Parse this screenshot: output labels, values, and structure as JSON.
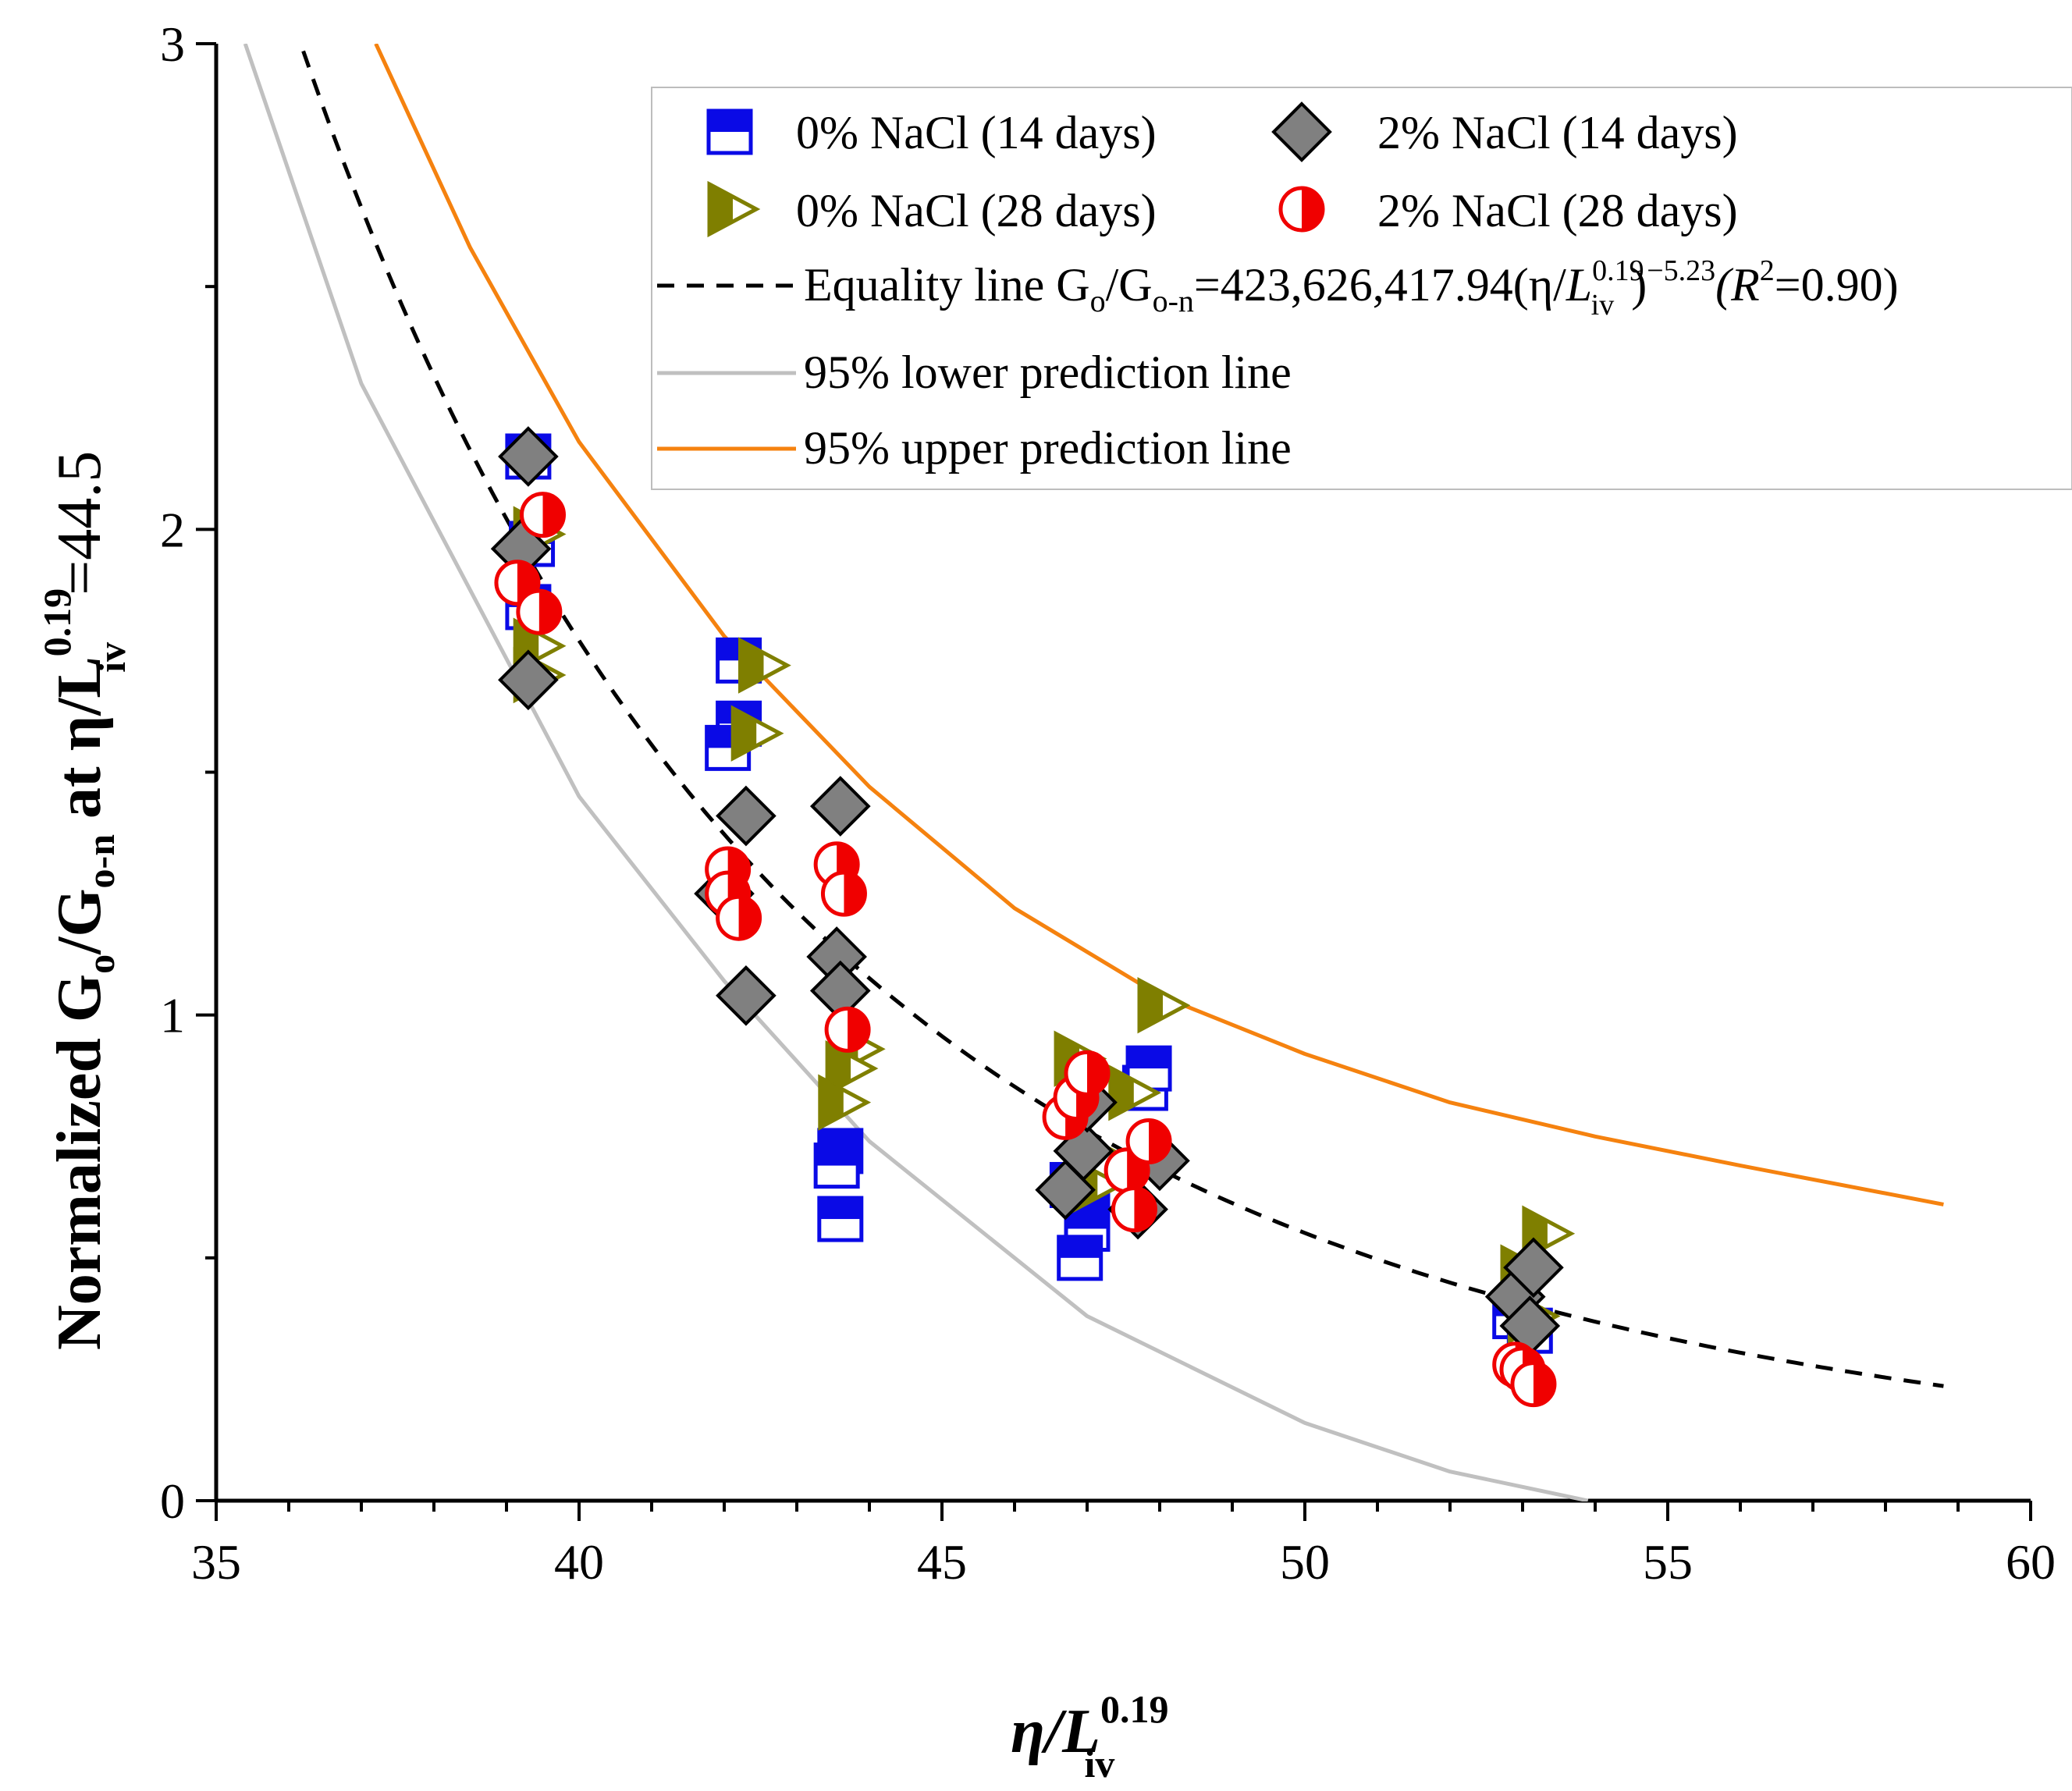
{
  "chart_data": {
    "type": "scatter",
    "xlabel": {
      "base": "η/L",
      "sub": "iv",
      "sup": "0.19"
    },
    "ylabel": {
      "prefix": "Normalized G",
      "sub1": "o",
      "mid": "/G",
      "sub2": "o-n",
      "at": " at η/L",
      "sub3": "iv",
      "sup3": "0.19",
      "suffix": "=44.5"
    },
    "xlim": [
      35,
      60
    ],
    "ylim": [
      0,
      3
    ],
    "xticks": [
      "35",
      "40",
      "45",
      "50",
      "55",
      "60"
    ],
    "yticks": [
      "0",
      "1",
      "2",
      "3"
    ],
    "series": [
      {
        "name": "0% NaCl (14 days)",
        "marker": "square-half",
        "color": "#0a0ae6",
        "points": [
          [
            39.3,
            2.15
          ],
          [
            39.35,
            1.97
          ],
          [
            39.3,
            1.84
          ],
          [
            42.2,
            1.73
          ],
          [
            42.2,
            1.6
          ],
          [
            42.05,
            1.55
          ],
          [
            43.6,
            0.72
          ],
          [
            43.55,
            0.69
          ],
          [
            43.6,
            0.58
          ],
          [
            46.8,
            0.65
          ],
          [
            47.0,
            0.6
          ],
          [
            47.0,
            0.56
          ],
          [
            46.9,
            0.5
          ],
          [
            47.8,
            0.85
          ],
          [
            47.85,
            0.89
          ],
          [
            52.9,
            0.38
          ],
          [
            53.1,
            0.35
          ]
        ]
      },
      {
        "name": "0% NaCl (28 days)",
        "marker": "triangle-right-half",
        "color": "#7f7f00",
        "points": [
          [
            39.4,
            1.99
          ],
          [
            39.4,
            1.76
          ],
          [
            39.4,
            1.7
          ],
          [
            42.5,
            1.72
          ],
          [
            42.4,
            1.58
          ],
          [
            43.8,
            0.93
          ],
          [
            43.7,
            0.89
          ],
          [
            43.6,
            0.82
          ],
          [
            46.85,
            0.91
          ],
          [
            47.0,
            0.72
          ],
          [
            47.1,
            0.65
          ],
          [
            47.6,
            0.84
          ],
          [
            48.0,
            1.02
          ],
          [
            53.0,
            0.47
          ],
          [
            53.3,
            0.55
          ],
          [
            53.1,
            0.38
          ]
        ]
      },
      {
        "name": "2% NaCl (14 days)",
        "marker": "diamond",
        "color": "#808080",
        "points": [
          [
            39.3,
            2.15
          ],
          [
            39.2,
            1.96
          ],
          [
            39.3,
            1.69
          ],
          [
            42.3,
            1.41
          ],
          [
            42.0,
            1.25
          ],
          [
            42.3,
            1.04
          ],
          [
            43.6,
            1.43
          ],
          [
            43.55,
            1.12
          ],
          [
            43.6,
            1.05
          ],
          [
            46.7,
            0.64
          ],
          [
            46.95,
            0.72
          ],
          [
            47.0,
            0.82
          ],
          [
            47.7,
            0.6
          ],
          [
            48.0,
            0.7
          ],
          [
            52.9,
            0.42
          ],
          [
            53.15,
            0.48
          ],
          [
            53.1,
            0.36
          ]
        ]
      },
      {
        "name": "2% NaCl (28 days)",
        "marker": "circle-half",
        "color": "#f00000",
        "points": [
          [
            39.5,
            2.03
          ],
          [
            39.15,
            1.89
          ],
          [
            39.45,
            1.83
          ],
          [
            42.05,
            1.3
          ],
          [
            42.05,
            1.25
          ],
          [
            42.2,
            1.2
          ],
          [
            43.55,
            1.31
          ],
          [
            43.65,
            1.25
          ],
          [
            43.7,
            0.97
          ],
          [
            46.7,
            0.79
          ],
          [
            46.85,
            0.83
          ],
          [
            47.0,
            0.88
          ],
          [
            47.55,
            0.68
          ],
          [
            47.65,
            0.6
          ],
          [
            47.85,
            0.74
          ],
          [
            52.9,
            0.28
          ],
          [
            53.0,
            0.27
          ],
          [
            53.15,
            0.24
          ]
        ]
      }
    ],
    "lines": [
      {
        "name": "Equality line",
        "style": "dashed",
        "color": "#000000",
        "coefficient": 423626417.94,
        "exponent": -5.23,
        "x_range": [
          36.2,
          58.8
        ]
      },
      {
        "name": "95% lower prediction line",
        "style": "solid",
        "color": "#c0c0c0",
        "points": [
          [
            35.4,
            3.0
          ],
          [
            37.0,
            2.3
          ],
          [
            40.0,
            1.45
          ],
          [
            42.0,
            1.07
          ],
          [
            44.0,
            0.74
          ],
          [
            47.0,
            0.38
          ],
          [
            50.0,
            0.16
          ],
          [
            52.0,
            0.06
          ],
          [
            53.9,
            0.0
          ]
        ]
      },
      {
        "name": "95% upper prediction line",
        "style": "solid",
        "color": "#f5820f",
        "points": [
          [
            37.2,
            3.0
          ],
          [
            38.5,
            2.58
          ],
          [
            40.0,
            2.18
          ],
          [
            42.0,
            1.78
          ],
          [
            44.0,
            1.47
          ],
          [
            46.0,
            1.22
          ],
          [
            48.0,
            1.04
          ],
          [
            50.0,
            0.92
          ],
          [
            52.0,
            0.82
          ],
          [
            54.0,
            0.75
          ],
          [
            56.0,
            0.69
          ],
          [
            58.8,
            0.61
          ]
        ]
      }
    ],
    "legend": {
      "position": "top-right",
      "entries": {
        "s0_14": "0% NaCl (14 days)",
        "s2_14": "2% NaCl (14 days)",
        "s0_28": "0% NaCl (28 days)",
        "s2_28": "2% NaCl (28 days)",
        "eq_prefix": "Equality line G",
        "eq_sub1": "o",
        "eq_mid": "/G",
        "eq_sub2": "o-n",
        "eq_formula": "=423,626,417.94(η/",
        "eq_L": "L",
        "eq_sup": "0.19",
        "eq_sub3": "iv",
        "eq_close": ")",
        "eq_exp": "−5.23",
        "eq_R": "(R",
        "eq_Rsup": "2",
        "eq_Rval": "=0.90)",
        "lower": "95% lower prediction line",
        "upper": "95% upper prediction line"
      }
    }
  }
}
